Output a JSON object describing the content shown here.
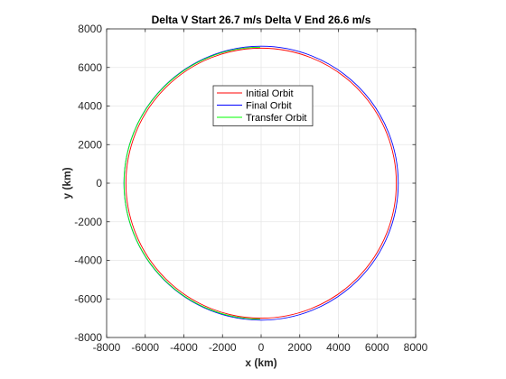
{
  "chart_data": {
    "type": "line",
    "title": "Delta V Start   26.7 m/s Delta V End   26.6 m/s",
    "xlabel": "x (km)",
    "ylabel": "y (km)",
    "xlim": [
      -8000,
      8000
    ],
    "ylim": [
      -8000,
      8000
    ],
    "xticks": [
      -8000,
      -6000,
      -4000,
      -2000,
      0,
      2000,
      4000,
      6000,
      8000
    ],
    "yticks": [
      -8000,
      -6000,
      -4000,
      -2000,
      0,
      2000,
      4000,
      6000,
      8000
    ],
    "xtick_labels": [
      "-8000",
      "-6000",
      "-4000",
      "-2000",
      "0",
      "2000",
      "4000",
      "6000",
      "8000"
    ],
    "ytick_labels": [
      "-8000",
      "-6000",
      "-4000",
      "-2000",
      "0",
      "2000",
      "4000",
      "6000",
      "8000"
    ],
    "grid": true,
    "legend_position": "top-center",
    "series": [
      {
        "name": "Initial Orbit",
        "color": "#ff0000",
        "shape": "circle",
        "center": [
          0,
          0
        ],
        "radius_x": 7000,
        "radius_y": 7000
      },
      {
        "name": "Final Orbit",
        "color": "#0000ff",
        "shape": "circle",
        "center": [
          0,
          0
        ],
        "radius_x": 7100,
        "radius_y": 7100
      },
      {
        "name": "Transfer Orbit",
        "color": "#00ff00",
        "shape": "half-ellipse",
        "center": [
          -50,
          0
        ],
        "radius_x": 7050,
        "radius_y": 7050,
        "x_side": "negative"
      }
    ]
  }
}
